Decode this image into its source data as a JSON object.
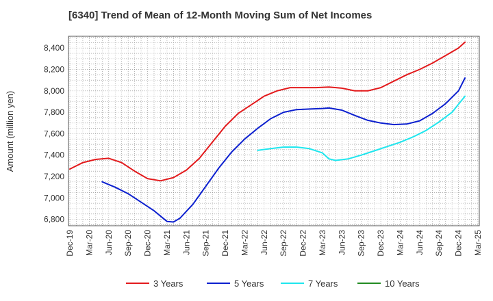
{
  "chart_data": {
    "type": "line",
    "title": "[6340]  Trend of Mean of 12-Month Moving Sum of Net Incomes",
    "ylabel": "Amount (million yen)",
    "xlabel": "",
    "ylim": [
      6740,
      8510
    ],
    "yticks": [
      6800,
      7000,
      7200,
      7400,
      7600,
      7800,
      8000,
      8200,
      8400
    ],
    "yticklabels": [
      "6,800",
      "7,000",
      "7,200",
      "7,400",
      "7,600",
      "7,800",
      "8,000",
      "8,200",
      "8,400"
    ],
    "xticklabels": [
      "Dec-19",
      "Mar-20",
      "Jun-20",
      "Sep-20",
      "Dec-20",
      "Mar-21",
      "Jun-21",
      "Sep-21",
      "Dec-21",
      "Mar-22",
      "Jun-22",
      "Sep-22",
      "Dec-22",
      "Mar-23",
      "Jun-23",
      "Sep-23",
      "Dec-23",
      "Mar-24",
      "Jun-24",
      "Sep-24",
      "Dec-24",
      "Mar-25"
    ],
    "grid": true,
    "legend": "bottom",
    "series": [
      {
        "name": "3 Years",
        "color": "#e31a1c",
        "points": [
          [
            "Dec-19",
            7270
          ],
          [
            "Feb-20",
            7330
          ],
          [
            "Apr-20",
            7360
          ],
          [
            "Jun-20",
            7370
          ],
          [
            "Aug-20",
            7330
          ],
          [
            "Oct-20",
            7250
          ],
          [
            "Dec-20",
            7180
          ],
          [
            "Feb-21",
            7160
          ],
          [
            "Apr-21",
            7190
          ],
          [
            "Jun-21",
            7260
          ],
          [
            "Aug-21",
            7370
          ],
          [
            "Oct-21",
            7520
          ],
          [
            "Dec-21",
            7670
          ],
          [
            "Feb-22",
            7790
          ],
          [
            "Apr-22",
            7870
          ],
          [
            "Jun-22",
            7950
          ],
          [
            "Aug-22",
            8000
          ],
          [
            "Oct-22",
            8030
          ],
          [
            "Dec-22",
            8030
          ],
          [
            "Feb-23",
            8030
          ],
          [
            "Apr-23",
            8035
          ],
          [
            "Jun-23",
            8025
          ],
          [
            "Aug-23",
            8000
          ],
          [
            "Oct-23",
            8000
          ],
          [
            "Dec-23",
            8030
          ],
          [
            "Feb-24",
            8090
          ],
          [
            "Apr-24",
            8150
          ],
          [
            "Jun-24",
            8200
          ],
          [
            "Aug-24",
            8260
          ],
          [
            "Oct-24",
            8330
          ],
          [
            "Dec-24",
            8400
          ],
          [
            "Jan-25",
            8455
          ]
        ]
      },
      {
        "name": "5 Years",
        "color": "#0b1fcf",
        "points": [
          [
            "May-20",
            7150
          ],
          [
            "Jul-20",
            7100
          ],
          [
            "Sep-20",
            7040
          ],
          [
            "Nov-20",
            6960
          ],
          [
            "Jan-21",
            6880
          ],
          [
            "Mar-21",
            6780
          ],
          [
            "Apr-21",
            6775
          ],
          [
            "May-21",
            6810
          ],
          [
            "Jul-21",
            6940
          ],
          [
            "Sep-21",
            7110
          ],
          [
            "Nov-21",
            7280
          ],
          [
            "Jan-22",
            7430
          ],
          [
            "Mar-22",
            7550
          ],
          [
            "May-22",
            7650
          ],
          [
            "Jul-22",
            7740
          ],
          [
            "Sep-22",
            7800
          ],
          [
            "Nov-22",
            7825
          ],
          [
            "Jan-23",
            7830
          ],
          [
            "Mar-23",
            7835
          ],
          [
            "Apr-23",
            7840
          ],
          [
            "Jun-23",
            7820
          ],
          [
            "Aug-23",
            7770
          ],
          [
            "Oct-23",
            7725
          ],
          [
            "Dec-23",
            7700
          ],
          [
            "Feb-24",
            7685
          ],
          [
            "Apr-24",
            7690
          ],
          [
            "Jun-24",
            7720
          ],
          [
            "Aug-24",
            7790
          ],
          [
            "Oct-24",
            7880
          ],
          [
            "Dec-24",
            8000
          ],
          [
            "Jan-25",
            8120
          ]
        ]
      },
      {
        "name": "7 Years",
        "color": "#1ee6ee",
        "points": [
          [
            "May-22",
            7445
          ],
          [
            "Jul-22",
            7460
          ],
          [
            "Sep-22",
            7475
          ],
          [
            "Nov-22",
            7475
          ],
          [
            "Jan-23",
            7460
          ],
          [
            "Mar-23",
            7420
          ],
          [
            "Apr-23",
            7365
          ],
          [
            "May-23",
            7350
          ],
          [
            "Jul-23",
            7365
          ],
          [
            "Sep-23",
            7400
          ],
          [
            "Nov-23",
            7440
          ],
          [
            "Jan-24",
            7480
          ],
          [
            "Mar-24",
            7520
          ],
          [
            "May-24",
            7570
          ],
          [
            "Jul-24",
            7630
          ],
          [
            "Sep-24",
            7710
          ],
          [
            "Nov-24",
            7800
          ],
          [
            "Jan-25",
            7950
          ]
        ]
      },
      {
        "name": "10 Years",
        "color": "#228b22",
        "points": []
      }
    ]
  }
}
